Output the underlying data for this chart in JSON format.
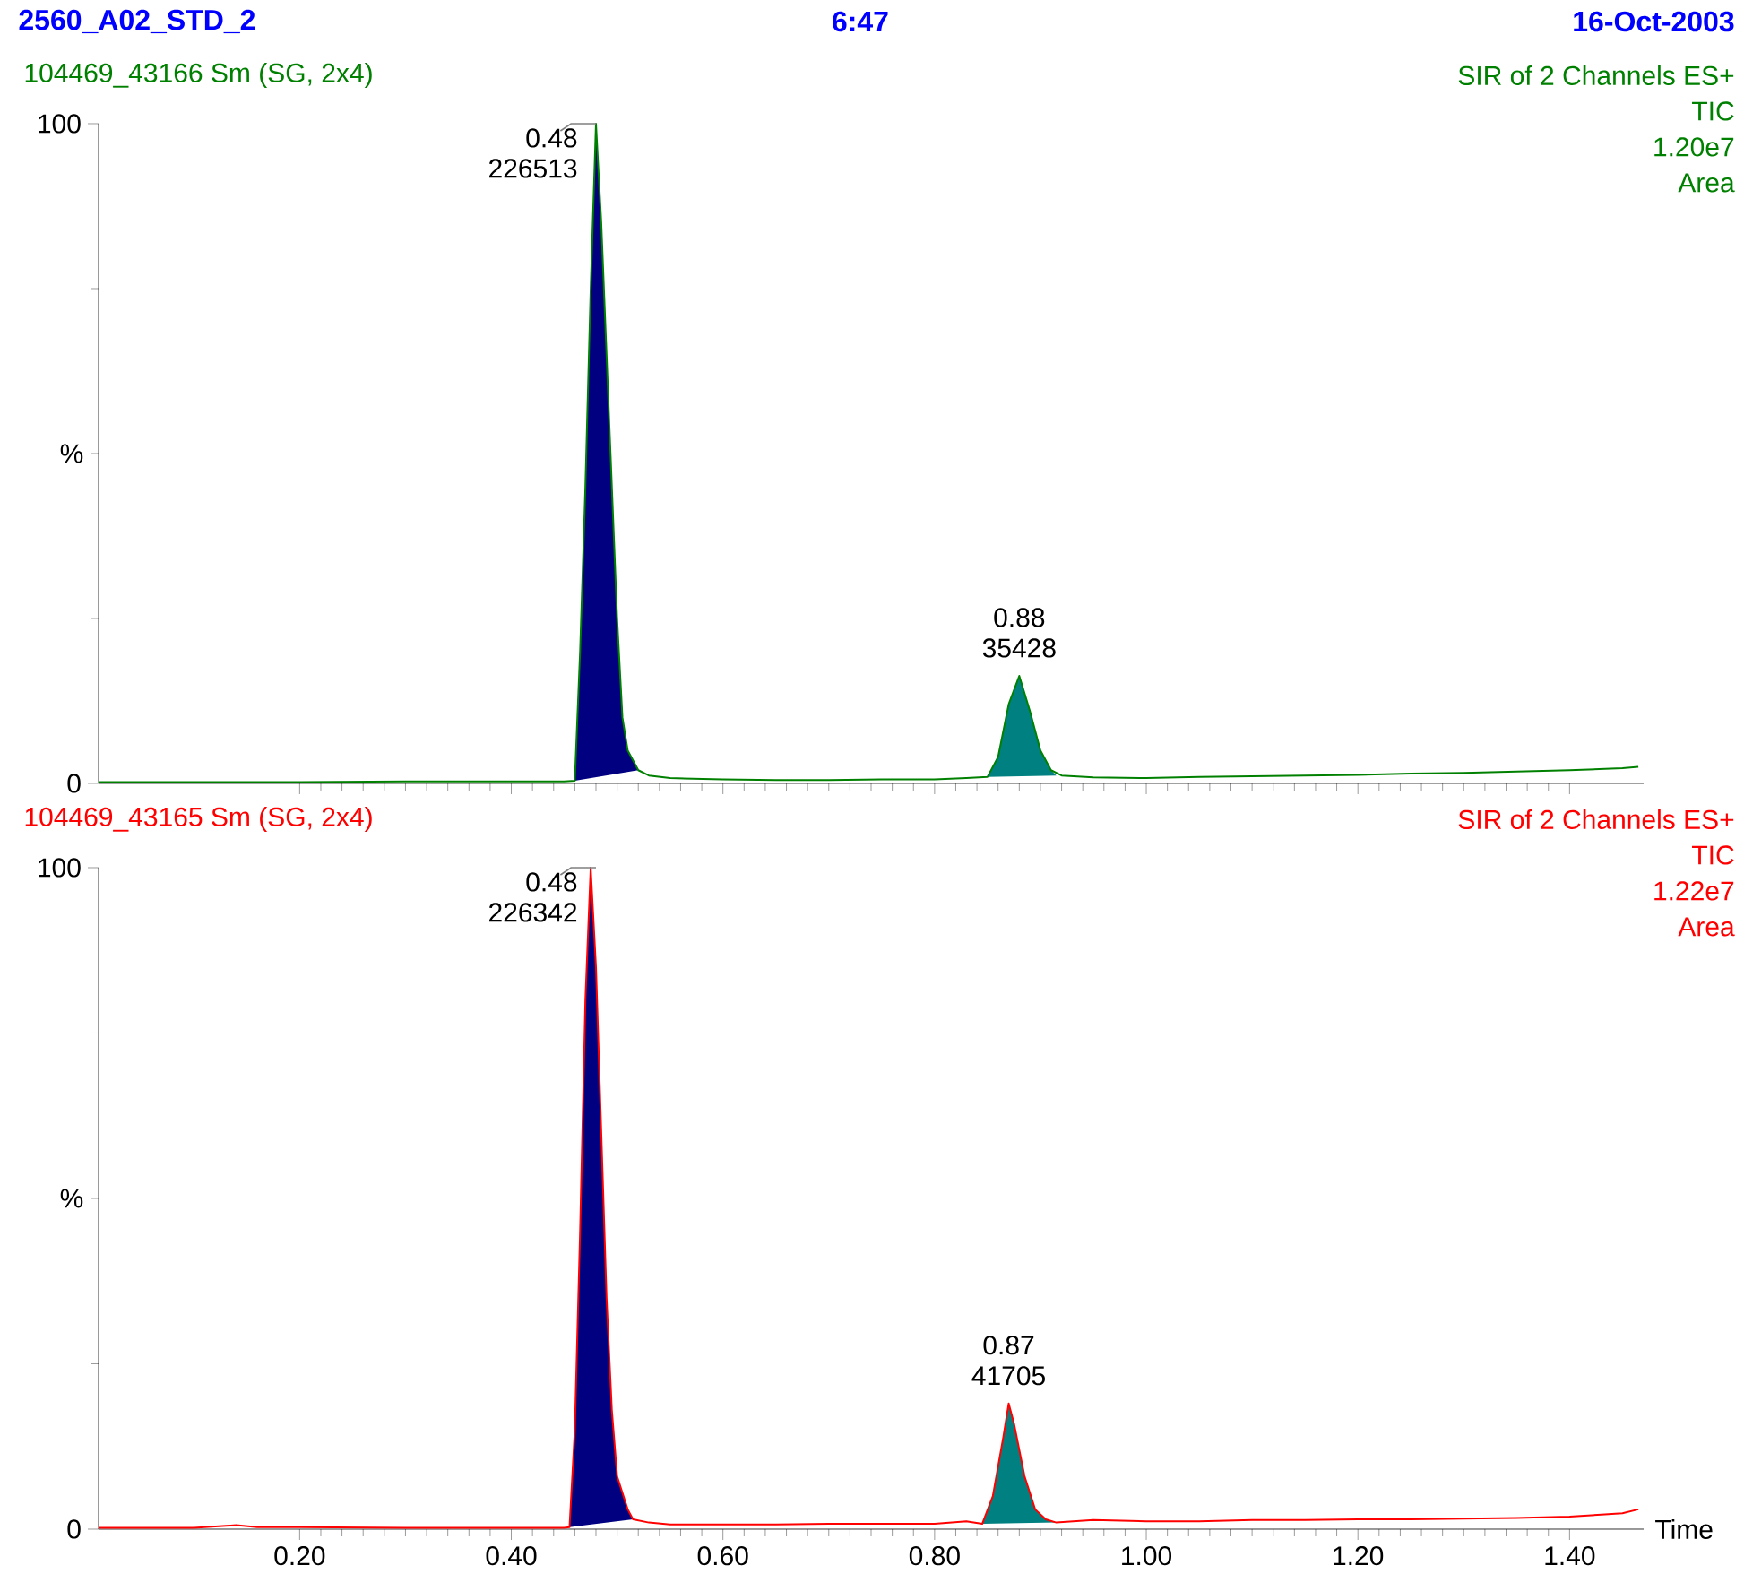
{
  "chart_data": [
    {
      "type": "line",
      "title": "2560_A02_STD_2",
      "subtitle": "104469_43166 Sm (SG, 2x4)",
      "ylabel": "%",
      "xlim": [
        0.01,
        1.47
      ],
      "ylim": [
        0,
        100
      ],
      "xticks": [
        0.2,
        0.4,
        0.6,
        0.8,
        1.0,
        1.2,
        1.4
      ],
      "yticks": [
        0,
        100
      ],
      "tick_labels": "y",
      "annotations": [
        "6:47",
        "16-Oct-2003",
        "SIR of 2 Channels ES+",
        "TIC",
        "1.20e7",
        "Area",
        {
          "text": "0.48",
          "x": 0.48,
          "y": 100
        },
        {
          "text": "226513",
          "x": 0.48,
          "y": 100
        },
        {
          "text": "0.88",
          "x": 0.88,
          "y": 16.3
        },
        {
          "text": "35428",
          "x": 0.88,
          "y": 16.3
        }
      ],
      "series": [
        {
          "type": "area",
          "color": "#000080",
          "x": [
            0.46,
            0.465,
            0.47,
            0.475,
            0.48,
            0.485,
            0.49,
            0.495,
            0.5,
            0.505,
            0.51,
            0.52
          ],
          "values": [
            0.4,
            20,
            45,
            75,
            100,
            85,
            65,
            45,
            25,
            10,
            5,
            2
          ]
        },
        {
          "type": "area",
          "color": "#008080",
          "x": [
            0.85,
            0.86,
            0.87,
            0.88,
            0.89,
            0.9,
            0.91,
            0.915
          ],
          "values": [
            1.0,
            4,
            12,
            16.3,
            11,
            5,
            2,
            1.2
          ]
        },
        {
          "color": "#008000",
          "x": [
            0.01,
            0.1,
            0.2,
            0.3,
            0.4,
            0.45,
            0.46,
            0.465,
            0.47,
            0.475,
            0.48,
            0.485,
            0.49,
            0.495,
            0.5,
            0.505,
            0.51,
            0.52,
            0.53,
            0.55,
            0.6,
            0.65,
            0.7,
            0.75,
            0.8,
            0.83,
            0.85,
            0.86,
            0.87,
            0.88,
            0.89,
            0.9,
            0.91,
            0.92,
            0.95,
            1.0,
            1.05,
            1.1,
            1.15,
            1.2,
            1.25,
            1.3,
            1.35,
            1.4,
            1.45,
            1.465
          ],
          "values": [
            0.2,
            0.2,
            0.2,
            0.3,
            0.3,
            0.3,
            0.4,
            20,
            45,
            75,
            100,
            85,
            65,
            45,
            25,
            10,
            5,
            2,
            1.2,
            0.8,
            0.6,
            0.5,
            0.5,
            0.6,
            0.6,
            0.8,
            1.0,
            4,
            12,
            16.3,
            11,
            5,
            2,
            1.2,
            0.9,
            0.8,
            1.0,
            1.1,
            1.2,
            1.3,
            1.5,
            1.6,
            1.8,
            2.0,
            2.3,
            2.5
          ]
        }
      ]
    },
    {
      "type": "line",
      "subtitle": "104469_43165 Sm (SG, 2x4)",
      "ylabel": "%",
      "xlabel": "Time",
      "xlim": [
        0.01,
        1.47
      ],
      "ylim": [
        0,
        100
      ],
      "xticks": [
        {
          "value": 0.2,
          "label": "0.20"
        },
        {
          "value": 0.4,
          "label": "0.40"
        },
        {
          "value": 0.6,
          "label": "0.60"
        },
        {
          "value": 0.8,
          "label": "0.80"
        },
        {
          "value": 1.0,
          "label": "1.00"
        },
        {
          "value": 1.2,
          "label": "1.20"
        },
        {
          "value": 1.4,
          "label": "1.40"
        }
      ],
      "yticks": [
        0,
        100
      ],
      "annotations": [
        "SIR of 2 Channels ES+",
        "TIC",
        "1.22e7",
        "Area",
        {
          "text": "0.48",
          "x": 0.48,
          "y": 100
        },
        {
          "text": "226342",
          "x": 0.48,
          "y": 100
        },
        {
          "text": "0.87",
          "x": 0.87,
          "y": 19
        },
        {
          "text": "41705",
          "x": 0.87,
          "y": 19
        }
      ],
      "series": [
        {
          "type": "area",
          "color": "#000080",
          "x": [
            0.455,
            0.46,
            0.465,
            0.47,
            0.475,
            0.48,
            0.485,
            0.49,
            0.495,
            0.5,
            0.51,
            0.515
          ],
          "values": [
            0.3,
            15,
            45,
            80,
            100,
            85,
            60,
            35,
            18,
            8,
            3,
            1.5
          ]
        },
        {
          "type": "area",
          "color": "#008080",
          "x": [
            0.845,
            0.855,
            0.865,
            0.87,
            0.875,
            0.885,
            0.895,
            0.905,
            0.915
          ],
          "values": [
            0.8,
            5,
            14,
            19,
            16,
            8,
            3,
            1.5,
            1.0
          ]
        },
        {
          "color": "#ff0000",
          "x": [
            0.01,
            0.1,
            0.14,
            0.16,
            0.2,
            0.3,
            0.4,
            0.45,
            0.455,
            0.46,
            0.465,
            0.47,
            0.475,
            0.48,
            0.485,
            0.49,
            0.495,
            0.5,
            0.51,
            0.515,
            0.53,
            0.55,
            0.6,
            0.65,
            0.7,
            0.75,
            0.8,
            0.83,
            0.845,
            0.855,
            0.865,
            0.87,
            0.875,
            0.885,
            0.895,
            0.905,
            0.915,
            0.95,
            1.0,
            1.05,
            1.1,
            1.15,
            1.2,
            1.25,
            1.3,
            1.35,
            1.4,
            1.43,
            1.45,
            1.465
          ],
          "values": [
            0.2,
            0.2,
            0.6,
            0.3,
            0.3,
            0.2,
            0.2,
            0.2,
            0.3,
            15,
            45,
            80,
            100,
            85,
            60,
            35,
            18,
            8,
            3,
            1.5,
            1.0,
            0.7,
            0.7,
            0.7,
            0.8,
            0.8,
            0.8,
            1.2,
            0.8,
            5,
            14,
            19,
            16,
            8,
            3,
            1.5,
            1.0,
            1.4,
            1.2,
            1.2,
            1.4,
            1.4,
            1.5,
            1.5,
            1.6,
            1.7,
            1.9,
            2.2,
            2.4,
            3.0
          ]
        }
      ]
    }
  ]
}
